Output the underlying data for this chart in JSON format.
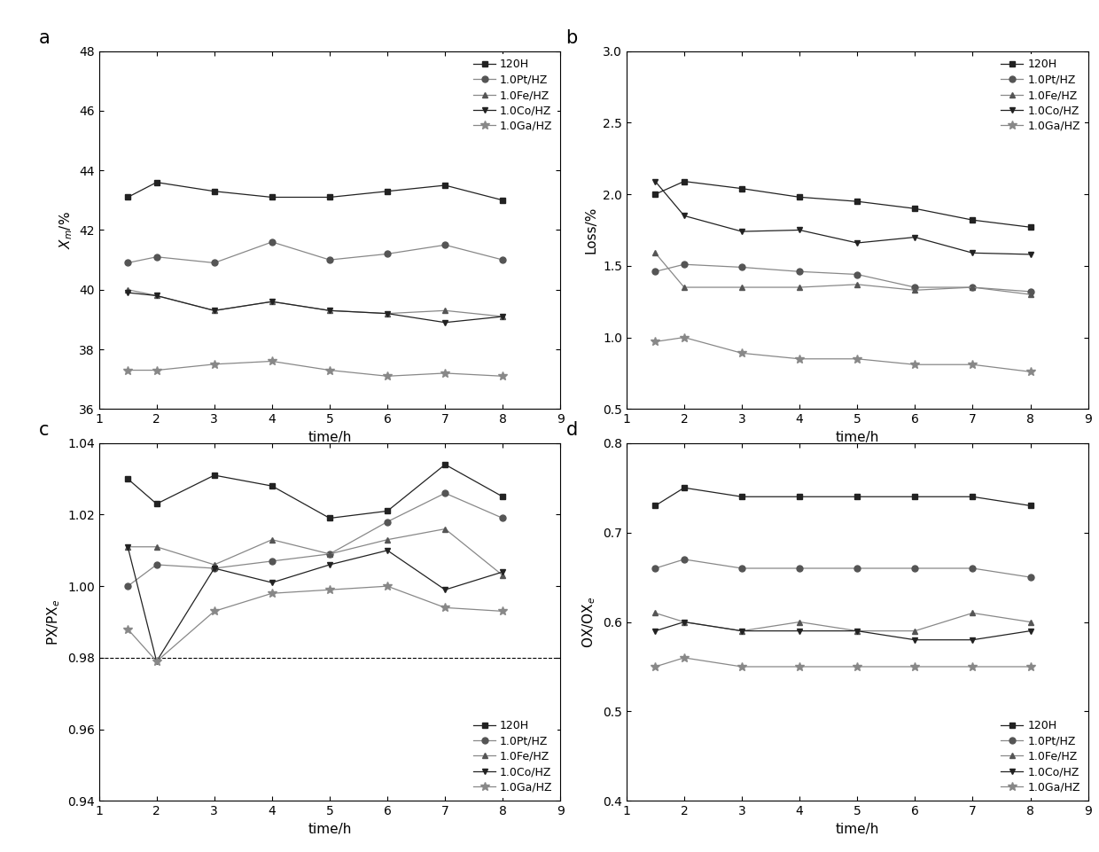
{
  "time": [
    1.5,
    2,
    3,
    4,
    5,
    6,
    7,
    8
  ],
  "panel_a": {
    "120H": [
      43.1,
      43.6,
      43.3,
      43.1,
      43.1,
      43.3,
      43.5,
      43.0
    ],
    "1.0Pt/HZ": [
      40.9,
      41.1,
      40.9,
      41.6,
      41.0,
      41.2,
      41.5,
      41.0
    ],
    "1.0Fe/HZ": [
      40.0,
      39.8,
      39.3,
      39.6,
      39.3,
      39.2,
      39.3,
      39.1
    ],
    "1.0Co/HZ": [
      39.9,
      39.8,
      39.3,
      39.6,
      39.3,
      39.2,
      38.9,
      39.1
    ],
    "1.0Ga/HZ": [
      37.3,
      37.3,
      37.5,
      37.6,
      37.3,
      37.1,
      37.2,
      37.1
    ]
  },
  "panel_b": {
    "120H": [
      2.0,
      2.09,
      2.04,
      1.98,
      1.95,
      1.9,
      1.82,
      1.77
    ],
    "1.0Pt/HZ": [
      1.46,
      1.51,
      1.49,
      1.46,
      1.44,
      1.35,
      1.35,
      1.32
    ],
    "1.0Fe/HZ": [
      1.59,
      1.35,
      1.35,
      1.35,
      1.37,
      1.33,
      1.35,
      1.3
    ],
    "1.0Co/HZ": [
      2.09,
      1.85,
      1.74,
      1.75,
      1.66,
      1.7,
      1.59,
      1.58
    ],
    "1.0Ga/HZ": [
      0.97,
      1.0,
      0.89,
      0.85,
      0.85,
      0.81,
      0.81,
      0.76
    ]
  },
  "panel_c": {
    "120H": [
      1.03,
      1.023,
      1.031,
      1.028,
      1.019,
      1.021,
      1.034,
      1.025
    ],
    "1.0Pt/HZ": [
      1.0,
      1.006,
      1.005,
      1.007,
      1.009,
      1.018,
      1.026,
      1.019
    ],
    "1.0Fe/HZ": [
      1.011,
      1.011,
      1.006,
      1.013,
      1.009,
      1.013,
      1.016,
      1.003
    ],
    "1.0Co/HZ": [
      1.011,
      0.979,
      1.005,
      1.001,
      1.006,
      1.01,
      0.999,
      1.004
    ],
    "1.0Ga/HZ": [
      0.988,
      0.979,
      0.993,
      0.998,
      0.999,
      1.0,
      0.994,
      0.993
    ]
  },
  "panel_d": {
    "120H": [
      0.73,
      0.75,
      0.74,
      0.74,
      0.74,
      0.74,
      0.74,
      0.73
    ],
    "1.0Pt/HZ": [
      0.66,
      0.67,
      0.66,
      0.66,
      0.66,
      0.66,
      0.66,
      0.65
    ],
    "1.0Fe/HZ": [
      0.61,
      0.6,
      0.59,
      0.6,
      0.59,
      0.59,
      0.61,
      0.6
    ],
    "1.0Co/HZ": [
      0.59,
      0.6,
      0.59,
      0.59,
      0.59,
      0.58,
      0.58,
      0.59
    ],
    "1.0Ga/HZ": [
      0.55,
      0.56,
      0.55,
      0.55,
      0.55,
      0.55,
      0.55,
      0.55
    ]
  },
  "labels": [
    "120H",
    "1.0Pt/HZ",
    "1.0Fe/HZ",
    "1.0Co/HZ",
    "1.0Ga/HZ"
  ],
  "markers": [
    "s",
    "o",
    "^",
    "v",
    "*"
  ],
  "line_colors": [
    "#222222",
    "#888888",
    "#888888",
    "#222222",
    "#888888"
  ],
  "marker_colors": [
    "#222222",
    "#555555",
    "#555555",
    "#222222",
    "#888888"
  ],
  "ylim_a": [
    36,
    48
  ],
  "yticks_a": [
    36,
    38,
    40,
    42,
    44,
    46,
    48
  ],
  "ylim_b": [
    0.5,
    3.0
  ],
  "yticks_b": [
    0.5,
    1.0,
    1.5,
    2.0,
    2.5,
    3.0
  ],
  "ylim_c": [
    0.94,
    1.04
  ],
  "yticks_c": [
    0.94,
    0.96,
    0.98,
    1.0,
    1.02,
    1.04
  ],
  "ylim_d": [
    0.4,
    0.8
  ],
  "yticks_d": [
    0.4,
    0.5,
    0.6,
    0.7,
    0.8
  ],
  "xlim": [
    1,
    9
  ],
  "xticks": [
    1,
    2,
    3,
    4,
    5,
    6,
    7,
    8,
    9
  ],
  "xlabel": "time/h",
  "ylabel_a": "$X_m$/%",
  "ylabel_b": "Loss/%",
  "ylabel_c": "PX/PX$_e$",
  "ylabel_d": "OX/OX$_e$",
  "panel_labels": [
    "a",
    "b",
    "c",
    "d"
  ],
  "dashed_line_c": 0.98,
  "markersize": 5,
  "linewidth": 0.9,
  "legend_locs": [
    "upper right",
    "upper right",
    "lower right",
    "lower right"
  ]
}
